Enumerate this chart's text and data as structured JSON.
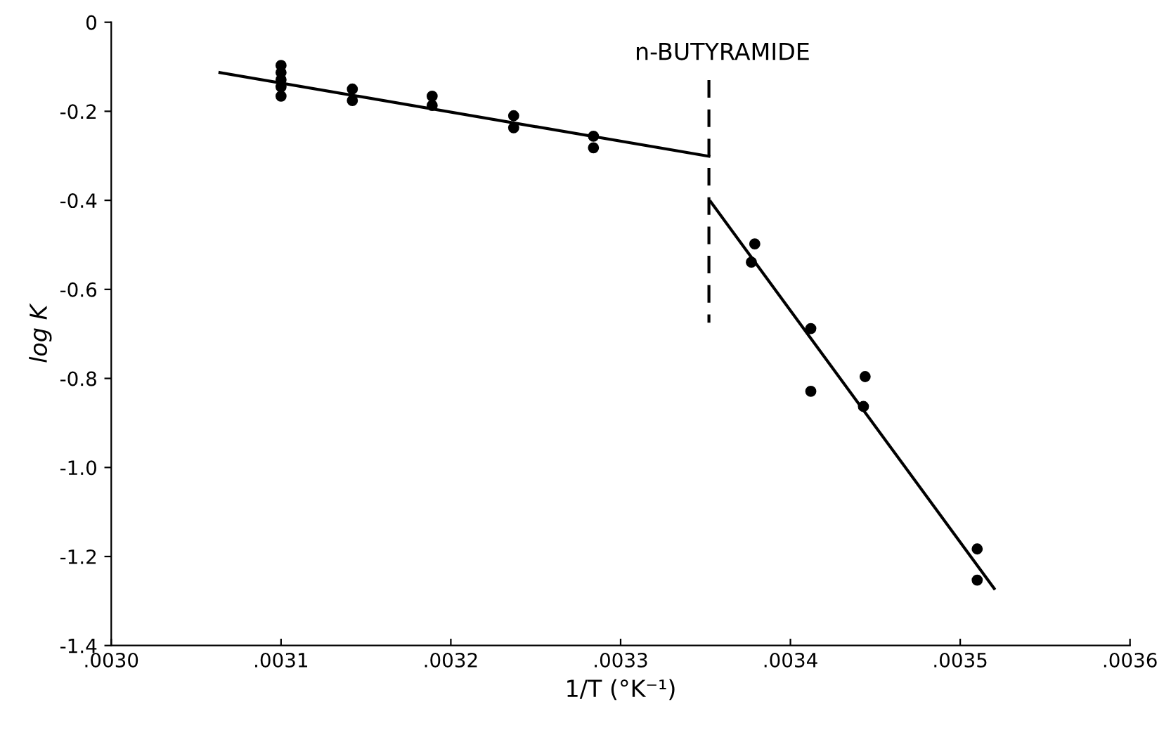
{
  "chart_data": {
    "type": "scatter",
    "title": "n-BUTYRAMIDE",
    "xlabel": "1/T (°K⁻¹)",
    "ylabel": "log K",
    "xlim": [
      0.003,
      0.0036
    ],
    "ylim": [
      -1.4,
      0
    ],
    "xticks": [
      {
        "value": 0.003,
        "label": ".0030"
      },
      {
        "value": 0.0031,
        "label": ".0031"
      },
      {
        "value": 0.0032,
        "label": ".0032"
      },
      {
        "value": 0.0033,
        "label": ".0033"
      },
      {
        "value": 0.0034,
        "label": ".0034"
      },
      {
        "value": 0.0035,
        "label": ".0035"
      },
      {
        "value": 0.0036,
        "label": ".0036"
      }
    ],
    "yticks": [
      0,
      -0.2,
      -0.4,
      -0.6,
      -0.8,
      {
        "value": -1.0,
        "label": "-1.0"
      },
      -1.2,
      -1.4
    ],
    "grid": false,
    "legend": false,
    "series": [
      {
        "marker": "circle",
        "color": "#000000",
        "x": [
          0.0031,
          0.0031,
          0.0031,
          0.0031,
          0.0031,
          0.003142,
          0.003142,
          0.003189,
          0.003189,
          0.003237,
          0.003237,
          0.003284,
          0.003284,
          0.003379,
          0.003377,
          0.003412,
          0.003412,
          0.003444,
          0.003443,
          0.00351,
          0.00351
        ],
        "values": [
          -0.097,
          -0.113,
          -0.129,
          -0.145,
          -0.166,
          -0.15,
          -0.176,
          -0.166,
          -0.187,
          -0.21,
          -0.237,
          -0.256,
          -0.282,
          -0.498,
          -0.539,
          -0.688,
          -0.829,
          -0.796,
          -0.863,
          -1.183,
          -1.253
        ]
      },
      {
        "type": "line",
        "line_style": "solid",
        "color": "#000000",
        "x": [
          0.003064,
          0.003352
        ],
        "values": [
          -0.113,
          -0.301
        ]
      },
      {
        "type": "line",
        "line_style": "solid",
        "color": "#000000",
        "x": [
          0.003353,
          0.00352
        ],
        "values": [
          -0.403,
          -1.272
        ]
      },
      {
        "type": "line",
        "line_style": "dashed",
        "color": "#000000",
        "x": [
          0.003352,
          0.003352
        ],
        "values": [
          -0.13,
          -0.675
        ]
      }
    ]
  }
}
